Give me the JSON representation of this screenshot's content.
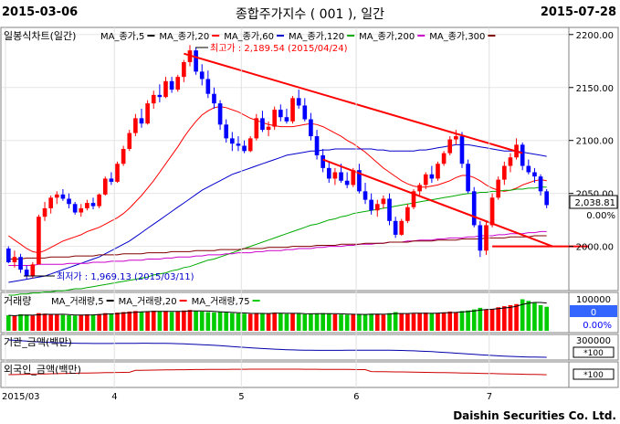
{
  "header": {
    "start_date": "2015-03-06",
    "title": "종합주가지수 ( 001 ), 일간",
    "end_date": "2015-07-28"
  },
  "legend_price": {
    "chart_name": "일봉식차트(일간)",
    "items": [
      {
        "label": "MA_종가,5",
        "color": "#000000"
      },
      {
        "label": "MA_종가,20",
        "color": "#ff0000"
      },
      {
        "label": "MA_종가,60",
        "color": "#0000cc"
      },
      {
        "label": "MA_종가,120",
        "color": "#00aa00"
      },
      {
        "label": "MA_종가,200",
        "color": "#cc00cc"
      },
      {
        "label": "MA_종가,300",
        "color": "#800000"
      }
    ]
  },
  "legend_volume": {
    "chart_name": "거래량",
    "items": [
      {
        "label": "MA_거래량,5",
        "color": "#000000"
      },
      {
        "label": "MA_거래량,20",
        "color": "#ff0000"
      },
      {
        "label": "MA_거래량,75",
        "color": "#00cc00"
      }
    ]
  },
  "panel_inst": {
    "label": "기관_금액(백만)",
    "tick": "300000",
    "unit": "*100"
  },
  "panel_foreign": {
    "label": "외국인_금액(백만)",
    "unit": "*100"
  },
  "annotations": {
    "high": "최고가 : 2,189.54 (2015/04/24)",
    "low": "최저가 : 1,969.13 (2015/03/11)"
  },
  "price_axis": {
    "ticks": [
      "2200.00",
      "2150.00",
      "2100.00",
      "2050.00",
      "2000.00"
    ],
    "current_price": "2,038.81",
    "current_change": "0.00%"
  },
  "volume_axis": {
    "tick": "100000",
    "value": "0",
    "change": "0.00%"
  },
  "x_labels": [
    "2015/03",
    "4",
    "5",
    "6",
    "7"
  ],
  "credit": "Daishin Securities Co. Ltd.",
  "colors": {
    "up": "#ff0000",
    "down": "#0000ff",
    "vol_up": "#ff0000",
    "vol_down": "#00cc00",
    "trendline": "#ff0000"
  },
  "chart_data": {
    "type": "candlestick",
    "title": "종합주가지수 ( 001 ), 일간",
    "ylim": [
      1960,
      2205
    ],
    "x_range": [
      "2015-03-06",
      "2015-07-28"
    ],
    "months": [
      {
        "label": "2015/03",
        "start_index": 0
      },
      {
        "label": "4",
        "start_index": 18
      },
      {
        "label": "5",
        "start_index": 39
      },
      {
        "label": "6",
        "start_index": 58
      },
      {
        "label": "7",
        "start_index": 80
      }
    ],
    "candles": [
      [
        1998,
        2000,
        1984,
        1985
      ],
      [
        1985,
        1996,
        1980,
        1990
      ],
      [
        1990,
        1993,
        1975,
        1978
      ],
      [
        1978,
        1982,
        1969,
        1972
      ],
      [
        1972,
        1985,
        1970,
        1983
      ],
      [
        1983,
        2030,
        1983,
        2028
      ],
      [
        2028,
        2042,
        2024,
        2036
      ],
      [
        2036,
        2048,
        2031,
        2046
      ],
      [
        2046,
        2052,
        2040,
        2049
      ],
      [
        2049,
        2054,
        2043,
        2045
      ],
      [
        2045,
        2050,
        2036,
        2040
      ],
      [
        2040,
        2042,
        2030,
        2032
      ],
      [
        2032,
        2040,
        2028,
        2036
      ],
      [
        2036,
        2044,
        2034,
        2041
      ],
      [
        2041,
        2046,
        2035,
        2038
      ],
      [
        2038,
        2050,
        2036,
        2049
      ],
      [
        2049,
        2066,
        2048,
        2064
      ],
      [
        2064,
        2070,
        2058,
        2061
      ],
      [
        2061,
        2080,
        2060,
        2078
      ],
      [
        2078,
        2095,
        2076,
        2092
      ],
      [
        2092,
        2110,
        2090,
        2107
      ],
      [
        2107,
        2125,
        2104,
        2121
      ],
      [
        2121,
        2130,
        2112,
        2116
      ],
      [
        2116,
        2138,
        2115,
        2135
      ],
      [
        2135,
        2147,
        2130,
        2143
      ],
      [
        2143,
        2153,
        2136,
        2141
      ],
      [
        2141,
        2160,
        2140,
        2156
      ],
      [
        2156,
        2160,
        2145,
        2148
      ],
      [
        2148,
        2162,
        2146,
        2160
      ],
      [
        2160,
        2176,
        2155,
        2174
      ],
      [
        2174,
        2190,
        2170,
        2185
      ],
      [
        2185,
        2188,
        2162,
        2165
      ],
      [
        2165,
        2172,
        2152,
        2158
      ],
      [
        2158,
        2166,
        2140,
        2144
      ],
      [
        2144,
        2150,
        2130,
        2135
      ],
      [
        2135,
        2138,
        2110,
        2115
      ],
      [
        2115,
        2120,
        2098,
        2102
      ],
      [
        2102,
        2108,
        2090,
        2097
      ],
      [
        2097,
        2104,
        2090,
        2095
      ],
      [
        2095,
        2100,
        2088,
        2090
      ],
      [
        2090,
        2104,
        2089,
        2102
      ],
      [
        2102,
        2125,
        2100,
        2121
      ],
      [
        2121,
        2128,
        2108,
        2110
      ],
      [
        2110,
        2118,
        2104,
        2113
      ],
      [
        2113,
        2132,
        2110,
        2129
      ],
      [
        2129,
        2134,
        2118,
        2122
      ],
      [
        2122,
        2130,
        2116,
        2118
      ],
      [
        2118,
        2142,
        2116,
        2140
      ],
      [
        2140,
        2148,
        2130,
        2133
      ],
      [
        2133,
        2140,
        2118,
        2120
      ],
      [
        2120,
        2126,
        2100,
        2104
      ],
      [
        2104,
        2110,
        2082,
        2086
      ],
      [
        2086,
        2092,
        2070,
        2074
      ],
      [
        2074,
        2080,
        2060,
        2064
      ],
      [
        2064,
        2074,
        2058,
        2070
      ],
      [
        2070,
        2078,
        2060,
        2062
      ],
      [
        2062,
        2070,
        2055,
        2058
      ],
      [
        2058,
        2074,
        2056,
        2072
      ],
      [
        2072,
        2078,
        2050,
        2052
      ],
      [
        2052,
        2060,
        2040,
        2044
      ],
      [
        2044,
        2050,
        2030,
        2034
      ],
      [
        2034,
        2044,
        2028,
        2040
      ],
      [
        2040,
        2048,
        2036,
        2045
      ],
      [
        2045,
        2050,
        2020,
        2024
      ],
      [
        2024,
        2028,
        2008,
        2011
      ],
      [
        2011,
        2026,
        2010,
        2024
      ],
      [
        2024,
        2040,
        2022,
        2037
      ],
      [
        2037,
        2054,
        2035,
        2052
      ],
      [
        2052,
        2060,
        2048,
        2058
      ],
      [
        2058,
        2070,
        2054,
        2068
      ],
      [
        2068,
        2076,
        2060,
        2064
      ],
      [
        2064,
        2080,
        2062,
        2078
      ],
      [
        2078,
        2090,
        2076,
        2088
      ],
      [
        2088,
        2104,
        2086,
        2101
      ],
      [
        2101,
        2110,
        2096,
        2104
      ],
      [
        2104,
        2108,
        2074,
        2078
      ],
      [
        2078,
        2082,
        2050,
        2052
      ],
      [
        2052,
        2056,
        2018,
        2020
      ],
      [
        2020,
        2024,
        1990,
        1996
      ],
      [
        1996,
        2024,
        1992,
        2020
      ],
      [
        2020,
        2050,
        2018,
        2046
      ],
      [
        2046,
        2066,
        2044,
        2063
      ],
      [
        2063,
        2080,
        2058,
        2076
      ],
      [
        2076,
        2088,
        2070,
        2084
      ],
      [
        2084,
        2102,
        2082,
        2096
      ],
      [
        2096,
        2098,
        2072,
        2076
      ],
      [
        2076,
        2082,
        2068,
        2070
      ],
      [
        2070,
        2074,
        2060,
        2066
      ],
      [
        2066,
        2068,
        2048,
        2052
      ],
      [
        2052,
        2054,
        2036,
        2039
      ]
    ],
    "ma_series": [
      {
        "name": "MA_종가,20",
        "color": "#ff0000",
        "values": [
          2010,
          2006,
          2002,
          1998,
          1995,
          1994,
          1996,
          1999,
          2002,
          2005,
          2007,
          2009,
          2011,
          2014,
          2016,
          2018,
          2021,
          2024,
          2027,
          2031,
          2036,
          2042,
          2048,
          2055,
          2062,
          2070,
          2078,
          2086,
          2094,
          2103,
          2111,
          2118,
          2124,
          2128,
          2131,
          2132,
          2131,
          2129,
          2127,
          2124,
          2121,
          2119,
          2117,
          2115,
          2114,
          2113,
          2113,
          2113,
          2114,
          2115,
          2116,
          2115,
          2113,
          2110,
          2107,
          2104,
          2100,
          2097,
          2093,
          2089,
          2084,
          2079,
          2074,
          2070,
          2066,
          2062,
          2059,
          2057,
          2056,
          2056,
          2057,
          2058,
          2060,
          2062,
          2065,
          2067,
          2067,
          2065,
          2062,
          2058,
          2055,
          2053,
          2052,
          2053,
          2055,
          2058,
          2060,
          2062,
          2063,
          2062
        ]
      },
      {
        "name": "MA_종가,60",
        "color": "#0000cc",
        "values": [
          1966,
          1967,
          1968,
          1969,
          1970,
          1971,
          1972,
          1974,
          1976,
          1978,
          1980,
          1982,
          1984,
          1986,
          1988,
          1990,
          1993,
          1996,
          1999,
          2002,
          2005,
          2009,
          2013,
          2017,
          2021,
          2025,
          2029,
          2033,
          2037,
          2041,
          2045,
          2049,
          2053,
          2056,
          2059,
          2062,
          2065,
          2068,
          2070,
          2072,
          2074,
          2076,
          2078,
          2080,
          2082,
          2084,
          2086,
          2087,
          2088,
          2089,
          2090,
          2090,
          2091,
          2091,
          2092,
          2092,
          2092,
          2092,
          2092,
          2092,
          2092,
          2091,
          2091,
          2090,
          2090,
          2090,
          2090,
          2090,
          2091,
          2091,
          2092,
          2093,
          2094,
          2095,
          2096,
          2096,
          2096,
          2095,
          2094,
          2093,
          2092,
          2091,
          2090,
          2090,
          2090,
          2089,
          2088,
          2087,
          2086,
          2085
        ]
      },
      {
        "name": "MA_종가,120",
        "color": "#00aa00",
        "values": [
          1954,
          1954,
          1955,
          1955,
          1956,
          1956,
          1957,
          1957,
          1958,
          1958,
          1959,
          1960,
          1960,
          1961,
          1962,
          1963,
          1964,
          1965,
          1966,
          1967,
          1968,
          1969,
          1970,
          1971,
          1973,
          1974,
          1975,
          1977,
          1978,
          1980,
          1981,
          1983,
          1985,
          1987,
          1988,
          1990,
          1992,
          1994,
          1996,
          1998,
          2000,
          2002,
          2004,
          2006,
          2008,
          2010,
          2012,
          2014,
          2016,
          2018,
          2020,
          2021,
          2023,
          2025,
          2026,
          2028,
          2029,
          2031,
          2032,
          2033,
          2034,
          2035,
          2036,
          2037,
          2038,
          2039,
          2040,
          2041,
          2042,
          2043,
          2044,
          2045,
          2046,
          2047,
          2048,
          2049,
          2050,
          2050,
          2051,
          2051,
          2052,
          2052,
          2053,
          2053,
          2054,
          2054,
          2055,
          2055,
          2056,
          2056
        ]
      },
      {
        "name": "MA_종가,200",
        "color": "#cc00cc",
        "values": [
          1982,
          1982,
          1982,
          1982,
          1982,
          1983,
          1983,
          1983,
          1983,
          1983,
          1984,
          1984,
          1984,
          1984,
          1985,
          1985,
          1985,
          1986,
          1986,
          1986,
          1987,
          1987,
          1987,
          1988,
          1988,
          1988,
          1989,
          1989,
          1990,
          1990,
          1990,
          1991,
          1991,
          1992,
          1992,
          1992,
          1993,
          1993,
          1994,
          1994,
          1994,
          1995,
          1995,
          1996,
          1996,
          1996,
          1997,
          1997,
          1998,
          1998,
          1998,
          1999,
          1999,
          2000,
          2000,
          2000,
          2001,
          2001,
          2002,
          2002,
          2002,
          2003,
          2003,
          2004,
          2004,
          2004,
          2005,
          2005,
          2006,
          2006,
          2006,
          2007,
          2007,
          2008,
          2008,
          2008,
          2009,
          2009,
          2010,
          2010,
          2010,
          2011,
          2011,
          2012,
          2012,
          2012,
          2013,
          2013,
          2014,
          2014
        ]
      },
      {
        "name": "MA_종가,300",
        "color": "#800000",
        "values": [
          1988,
          1988,
          1988,
          1989,
          1989,
          1989,
          1989,
          1990,
          1990,
          1990,
          1990,
          1991,
          1991,
          1991,
          1991,
          1992,
          1992,
          1992,
          1992,
          1993,
          1993,
          1993,
          1993,
          1994,
          1994,
          1994,
          1994,
          1995,
          1995,
          1995,
          1995,
          1996,
          1996,
          1996,
          1996,
          1997,
          1997,
          1997,
          1997,
          1998,
          1998,
          1998,
          1998,
          1999,
          1999,
          1999,
          1999,
          2000,
          2000,
          2000,
          2000,
          2001,
          2001,
          2001,
          2001,
          2002,
          2002,
          2002,
          2002,
          2003,
          2003,
          2003,
          2003,
          2004,
          2004,
          2004,
          2004,
          2005,
          2005,
          2005,
          2005,
          2006,
          2006,
          2006,
          2006,
          2007,
          2007,
          2007,
          2007,
          2008,
          2008,
          2008,
          2008,
          2009,
          2009,
          2009,
          2009,
          2010,
          2010,
          2010
        ]
      }
    ],
    "trendlines": [
      {
        "from": [
          29,
          2182
        ],
        "to": [
          85,
          2088
        ]
      },
      {
        "from": [
          52,
          2082
        ],
        "to": [
          90,
          2000
        ]
      },
      {
        "from": [
          80,
          2000
        ],
        "to": [
          96,
          2000
        ]
      }
    ],
    "volume": {
      "ylim": [
        0,
        130000
      ],
      "values": [
        58000,
        55000,
        62000,
        60000,
        57000,
        66000,
        64000,
        61000,
        60000,
        59000,
        58000,
        57000,
        60000,
        62000,
        61000,
        63000,
        66000,
        64000,
        68000,
        70000,
        72000,
        74000,
        71000,
        73000,
        75000,
        72000,
        74000,
        70000,
        73000,
        76000,
        78000,
        74000,
        72000,
        70000,
        69000,
        71000,
        68000,
        66000,
        65000,
        64000,
        63000,
        67000,
        66000,
        64000,
        68000,
        65000,
        63000,
        66000,
        64000,
        62000,
        63000,
        65000,
        66000,
        64000,
        62000,
        61000,
        60000,
        63000,
        62000,
        61000,
        64000,
        63000,
        60000,
        66000,
        70000,
        65000,
        63000,
        64000,
        66000,
        68000,
        65000,
        67000,
        69000,
        72000,
        70000,
        74000,
        76000,
        80000,
        86000,
        80000,
        82000,
        88000,
        92000,
        96000,
        100000,
        118000,
        112000,
        104000,
        96000,
        90000
      ]
    }
  }
}
